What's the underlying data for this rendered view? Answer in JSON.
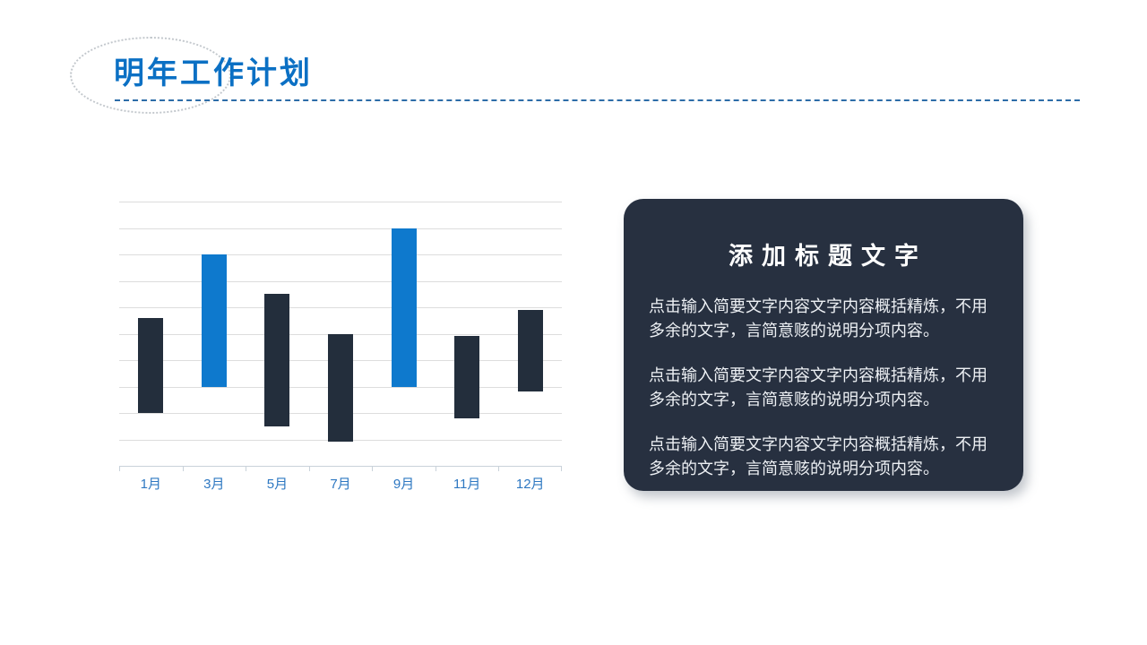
{
  "slide": {
    "title": "明年工作计划",
    "accent_color": "#0b70c4",
    "background_color": "#ffffff"
  },
  "chart_data": {
    "type": "bar",
    "subtype": "floating-range-bars",
    "title": "",
    "xlabel": "",
    "ylabel": "",
    "categories": [
      "1月",
      "3月",
      "5月",
      "7月",
      "9月",
      "11月",
      "12月"
    ],
    "series": [
      {
        "name": "range",
        "ranges": [
          [
            2.0,
            5.6
          ],
          [
            3.0,
            8.0
          ],
          [
            1.5,
            6.5
          ],
          [
            0.9,
            5.0
          ],
          [
            3.0,
            9.0
          ],
          [
            1.8,
            4.9
          ],
          [
            2.8,
            5.9
          ]
        ]
      }
    ],
    "ylim": [
      0,
      10
    ],
    "grid_step": 1,
    "grid_on": true,
    "legend": "none",
    "bar_colors": [
      "#232e3c",
      "#0e79cd",
      "#232e3c",
      "#232e3c",
      "#0e79cd",
      "#232e3c",
      "#232e3c"
    ],
    "grid_color": "#dddddd",
    "axis_color": "#c9d2da",
    "tick_label_color": "#2e78c2"
  },
  "card": {
    "title": "添加标题文字",
    "paragraphs": [
      "点击输入简要文字内容文字内容概括精炼，不用多余的文字，言简意赅的说明分项内容。",
      "点击输入简要文字内容文字内容概括精炼，不用多余的文字，言简意赅的说明分项内容。",
      "点击输入简要文字内容文字内容概括精炼，不用多余的文字，言简意赅的说明分项内容。"
    ],
    "bg_color": "#273040",
    "text_color": "#edf0f4"
  }
}
